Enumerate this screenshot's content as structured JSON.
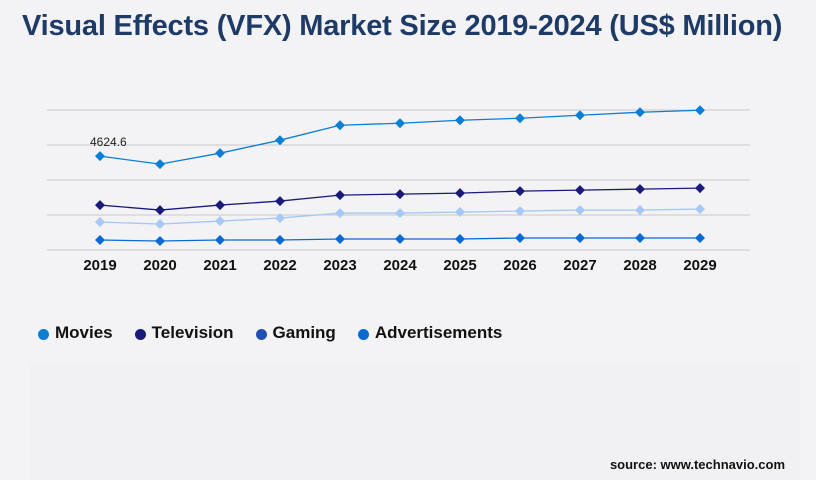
{
  "title": "Visual Effects (VFX) Market Size 2019-2024 (US$ Million)",
  "source": "source: www.technavio.com",
  "chart_data": {
    "type": "line",
    "title": "Visual Effects (VFX) Market Size 2019-2024 (US$ Million)",
    "xlabel": "",
    "ylabel": "",
    "x": [
      "2019",
      "2020",
      "2021",
      "2022",
      "2023",
      "2024",
      "2025",
      "2026",
      "2027",
      "2028",
      "2029"
    ],
    "ylim": [
      0,
      6900
    ],
    "grid": true,
    "y_tick_labels_shown": false,
    "legend_placement": "bottom-left",
    "annotations": [
      {
        "series": "Movies",
        "x": "2019",
        "label": "4624.6"
      }
    ],
    "series": [
      {
        "name": "Movies",
        "color": "#0a7fd4",
        "line_color": "#0a7fd4",
        "values": [
          4624.6,
          4231,
          4772,
          5412,
          6150,
          6248,
          6396,
          6494,
          6642,
          6790,
          6888
        ]
      },
      {
        "name": "Television",
        "color": "#1a1a7a",
        "line_color": "#1a1a7a",
        "values": [
          2214,
          1968,
          2214,
          2411,
          2706,
          2755,
          2804,
          2903,
          2952,
          3001,
          3050
        ]
      },
      {
        "name": "Gaming",
        "color": "#1f4fb0",
        "line_color": "#a6c8f5",
        "values": [
          1378,
          1279,
          1427,
          1574,
          1820,
          1820,
          1870,
          1919,
          1968,
          1968,
          2017
        ]
      },
      {
        "name": "Advertisements",
        "color": "#0a6ad4",
        "line_color": "#0a6ad4",
        "values": [
          492,
          443,
          492,
          492,
          541,
          541,
          541,
          590,
          590,
          590,
          590
        ]
      }
    ]
  }
}
